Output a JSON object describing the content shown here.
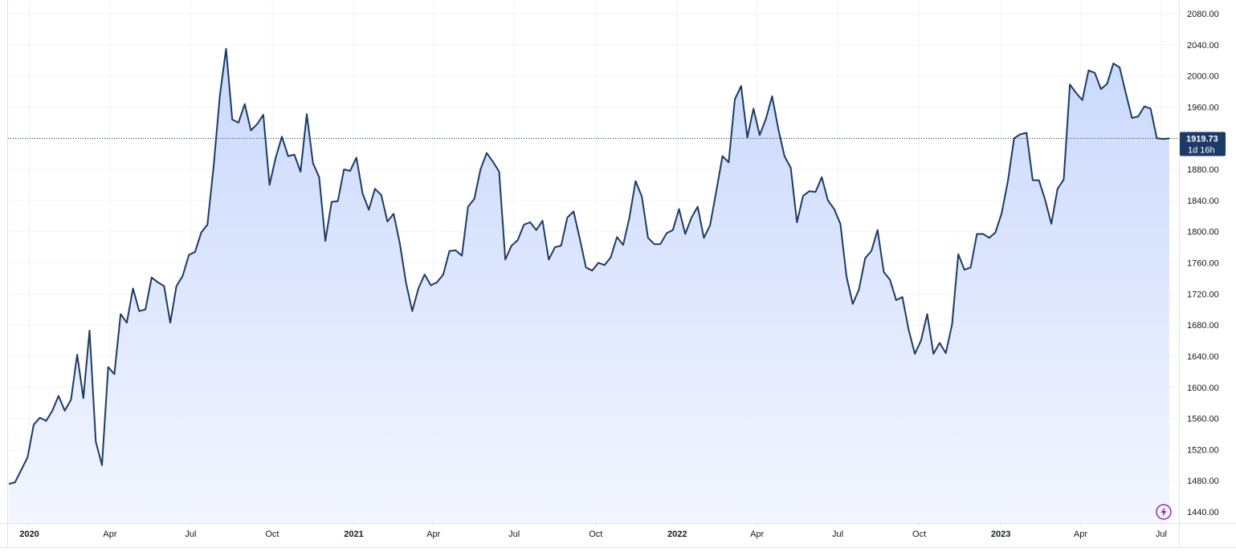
{
  "chart_data": {
    "type": "area",
    "title": "",
    "xlabel": "",
    "ylabel": "",
    "ylim": [
      1430,
      2090
    ],
    "y_ticks": [
      "1440.00",
      "1480.00",
      "1520.00",
      "1560.00",
      "1600.00",
      "1640.00",
      "1680.00",
      "1720.00",
      "1760.00",
      "1800.00",
      "1840.00",
      "1880.00",
      "1920.00",
      "1960.00",
      "2000.00",
      "2040.00",
      "2080.00"
    ],
    "x_ticks": [
      {
        "label": "2020",
        "date": "2020-01-01",
        "year": true
      },
      {
        "label": "Apr",
        "date": "2020-04-01",
        "year": false
      },
      {
        "label": "Jul",
        "date": "2020-07-01",
        "year": false
      },
      {
        "label": "Oct",
        "date": "2020-10-01",
        "year": false
      },
      {
        "label": "2021",
        "date": "2021-01-01",
        "year": true
      },
      {
        "label": "Apr",
        "date": "2021-04-01",
        "year": false
      },
      {
        "label": "Jul",
        "date": "2021-07-01",
        "year": false
      },
      {
        "label": "Oct",
        "date": "2021-10-01",
        "year": false
      },
      {
        "label": "2022",
        "date": "2022-01-01",
        "year": true
      },
      {
        "label": "Apr",
        "date": "2022-04-01",
        "year": false
      },
      {
        "label": "Jul",
        "date": "2022-07-01",
        "year": false
      },
      {
        "label": "Oct",
        "date": "2022-10-01",
        "year": false
      },
      {
        "label": "2023",
        "date": "2023-01-01",
        "year": true
      },
      {
        "label": "Apr",
        "date": "2023-04-01",
        "year": false
      },
      {
        "label": "Jul",
        "date": "2023-07-01",
        "year": false
      }
    ],
    "xlim": [
      "2019-12-08",
      "2023-07-21"
    ],
    "series": [
      {
        "values": [
          [
            "2019-12-09",
            1476
          ],
          [
            "2019-12-16",
            1478
          ],
          [
            "2019-12-30",
            1510
          ],
          [
            "2020-01-06",
            1552
          ],
          [
            "2020-01-13",
            1561
          ],
          [
            "2020-01-20",
            1557
          ],
          [
            "2020-01-27",
            1570
          ],
          [
            "2020-02-03",
            1589
          ],
          [
            "2020-02-10",
            1570
          ],
          [
            "2020-02-17",
            1584
          ],
          [
            "2020-02-24",
            1642
          ],
          [
            "2020-03-02",
            1586
          ],
          [
            "2020-03-09",
            1673
          ],
          [
            "2020-03-16",
            1530
          ],
          [
            "2020-03-23",
            1500
          ],
          [
            "2020-03-30",
            1626
          ],
          [
            "2020-04-06",
            1617
          ],
          [
            "2020-04-13",
            1694
          ],
          [
            "2020-04-20",
            1683
          ],
          [
            "2020-04-27",
            1727
          ],
          [
            "2020-05-04",
            1698
          ],
          [
            "2020-05-11",
            1700
          ],
          [
            "2020-05-18",
            1741
          ],
          [
            "2020-05-25",
            1735
          ],
          [
            "2020-06-01",
            1730
          ],
          [
            "2020-06-08",
            1683
          ],
          [
            "2020-06-15",
            1730
          ],
          [
            "2020-06-22",
            1743
          ],
          [
            "2020-06-29",
            1770
          ],
          [
            "2020-07-06",
            1774
          ],
          [
            "2020-07-13",
            1799
          ],
          [
            "2020-07-20",
            1809
          ],
          [
            "2020-07-27",
            1885
          ],
          [
            "2020-08-03",
            1975
          ],
          [
            "2020-08-10",
            2035
          ],
          [
            "2020-08-17",
            1944
          ],
          [
            "2020-08-24",
            1940
          ],
          [
            "2020-08-31",
            1964
          ],
          [
            "2020-09-07",
            1930
          ],
          [
            "2020-09-14",
            1938
          ],
          [
            "2020-09-21",
            1950
          ],
          [
            "2020-09-28",
            1860
          ],
          [
            "2020-10-05",
            1895
          ],
          [
            "2020-10-12",
            1922
          ],
          [
            "2020-10-19",
            1897
          ],
          [
            "2020-10-26",
            1899
          ],
          [
            "2020-11-02",
            1877
          ],
          [
            "2020-11-09",
            1951
          ],
          [
            "2020-11-16",
            1888
          ],
          [
            "2020-11-23",
            1870
          ],
          [
            "2020-11-30",
            1788
          ],
          [
            "2020-12-07",
            1838
          ],
          [
            "2020-12-14",
            1839
          ],
          [
            "2020-12-21",
            1880
          ],
          [
            "2020-12-28",
            1878
          ],
          [
            "2021-01-04",
            1895
          ],
          [
            "2021-01-11",
            1849
          ],
          [
            "2021-01-18",
            1828
          ],
          [
            "2021-01-25",
            1855
          ],
          [
            "2021-02-01",
            1847
          ],
          [
            "2021-02-08",
            1813
          ],
          [
            "2021-02-15",
            1823
          ],
          [
            "2021-02-22",
            1785
          ],
          [
            "2021-03-01",
            1734
          ],
          [
            "2021-03-08",
            1698
          ],
          [
            "2021-03-15",
            1727
          ],
          [
            "2021-03-22",
            1745
          ],
          [
            "2021-03-29",
            1731
          ],
          [
            "2021-04-05",
            1735
          ],
          [
            "2021-04-12",
            1745
          ],
          [
            "2021-04-19",
            1775
          ],
          [
            "2021-04-26",
            1776
          ],
          [
            "2021-05-03",
            1769
          ],
          [
            "2021-05-10",
            1832
          ],
          [
            "2021-05-17",
            1842
          ],
          [
            "2021-05-24",
            1880
          ],
          [
            "2021-05-31",
            1901
          ],
          [
            "2021-06-07",
            1890
          ],
          [
            "2021-06-14",
            1877
          ],
          [
            "2021-06-21",
            1764
          ],
          [
            "2021-06-28",
            1782
          ],
          [
            "2021-07-05",
            1789
          ],
          [
            "2021-07-12",
            1809
          ],
          [
            "2021-07-19",
            1812
          ],
          [
            "2021-07-26",
            1802
          ],
          [
            "2021-08-02",
            1814
          ],
          [
            "2021-08-09",
            1764
          ],
          [
            "2021-08-16",
            1780
          ],
          [
            "2021-08-23",
            1782
          ],
          [
            "2021-08-30",
            1818
          ],
          [
            "2021-09-06",
            1826
          ],
          [
            "2021-09-13",
            1791
          ],
          [
            "2021-09-20",
            1754
          ],
          [
            "2021-09-27",
            1750
          ],
          [
            "2021-10-04",
            1760
          ],
          [
            "2021-10-11",
            1757
          ],
          [
            "2021-10-18",
            1767
          ],
          [
            "2021-10-25",
            1793
          ],
          [
            "2021-11-01",
            1783
          ],
          [
            "2021-11-08",
            1818
          ],
          [
            "2021-11-15",
            1865
          ],
          [
            "2021-11-22",
            1845
          ],
          [
            "2021-11-29",
            1792
          ],
          [
            "2021-12-06",
            1784
          ],
          [
            "2021-12-13",
            1784
          ],
          [
            "2021-12-20",
            1798
          ],
          [
            "2021-12-27",
            1802
          ],
          [
            "2022-01-03",
            1829
          ],
          [
            "2022-01-10",
            1797
          ],
          [
            "2022-01-17",
            1818
          ],
          [
            "2022-01-24",
            1832
          ],
          [
            "2022-01-31",
            1792
          ],
          [
            "2022-02-07",
            1808
          ],
          [
            "2022-02-14",
            1852
          ],
          [
            "2022-02-21",
            1897
          ],
          [
            "2022-02-28",
            1889
          ],
          [
            "2022-03-07",
            1970
          ],
          [
            "2022-03-14",
            1987
          ],
          [
            "2022-03-21",
            1921
          ],
          [
            "2022-03-28",
            1958
          ],
          [
            "2022-04-04",
            1924
          ],
          [
            "2022-04-11",
            1945
          ],
          [
            "2022-04-18",
            1974
          ],
          [
            "2022-04-25",
            1932
          ],
          [
            "2022-05-02",
            1897
          ],
          [
            "2022-05-09",
            1882
          ],
          [
            "2022-05-16",
            1812
          ],
          [
            "2022-05-23",
            1846
          ],
          [
            "2022-05-30",
            1852
          ],
          [
            "2022-06-06",
            1851
          ],
          [
            "2022-06-13",
            1870
          ],
          [
            "2022-06-20",
            1840
          ],
          [
            "2022-06-27",
            1829
          ],
          [
            "2022-07-04",
            1810
          ],
          [
            "2022-07-11",
            1742
          ],
          [
            "2022-07-18",
            1707
          ],
          [
            "2022-07-25",
            1726
          ],
          [
            "2022-08-01",
            1766
          ],
          [
            "2022-08-08",
            1775
          ],
          [
            "2022-08-15",
            1802
          ],
          [
            "2022-08-22",
            1748
          ],
          [
            "2022-08-29",
            1738
          ],
          [
            "2022-09-05",
            1712
          ],
          [
            "2022-09-12",
            1716
          ],
          [
            "2022-09-19",
            1674
          ],
          [
            "2022-09-26",
            1643
          ],
          [
            "2022-10-03",
            1660
          ],
          [
            "2022-10-10",
            1694
          ],
          [
            "2022-10-17",
            1643
          ],
          [
            "2022-10-24",
            1657
          ],
          [
            "2022-10-31",
            1644
          ],
          [
            "2022-11-07",
            1681
          ],
          [
            "2022-11-14",
            1771
          ],
          [
            "2022-11-21",
            1751
          ],
          [
            "2022-11-28",
            1754
          ],
          [
            "2022-12-05",
            1797
          ],
          [
            "2022-12-12",
            1797
          ],
          [
            "2022-12-19",
            1792
          ],
          [
            "2022-12-26",
            1799
          ],
          [
            "2023-01-02",
            1824
          ],
          [
            "2023-01-09",
            1865
          ],
          [
            "2023-01-16",
            1920
          ],
          [
            "2023-01-23",
            1925
          ],
          [
            "2023-01-30",
            1927
          ],
          [
            "2023-02-06",
            1866
          ],
          [
            "2023-02-13",
            1866
          ],
          [
            "2023-02-20",
            1841
          ],
          [
            "2023-02-27",
            1810
          ],
          [
            "2023-03-06",
            1855
          ],
          [
            "2023-03-13",
            1867
          ],
          [
            "2023-03-20",
            1989
          ],
          [
            "2023-03-27",
            1978
          ],
          [
            "2023-04-03",
            1969
          ],
          [
            "2023-04-10",
            2007
          ],
          [
            "2023-04-17",
            2004
          ],
          [
            "2023-04-24",
            1983
          ],
          [
            "2023-05-01",
            1990
          ],
          [
            "2023-05-08",
            2016
          ],
          [
            "2023-05-15",
            2011
          ],
          [
            "2023-05-22",
            1978
          ],
          [
            "2023-05-29",
            1946
          ],
          [
            "2023-06-05",
            1948
          ],
          [
            "2023-06-12",
            1961
          ],
          [
            "2023-06-19",
            1958
          ],
          [
            "2023-06-26",
            1920
          ],
          [
            "2023-07-03",
            1919
          ],
          [
            "2023-07-10",
            1919.73
          ]
        ]
      }
    ],
    "last_value": 1919.73,
    "last_value_label": "1919.73",
    "countdown_label": "1d 16h",
    "colors": {
      "line": "#1c3a66",
      "fill_top": "#c9d8fc",
      "fill_bottom": "#f3f6fe",
      "grid": "#f0f3fa",
      "axis_border": "#e0e3eb",
      "price_label_bg": "#1c3a66",
      "badge": "#9c27b0"
    },
    "grid": true
  }
}
